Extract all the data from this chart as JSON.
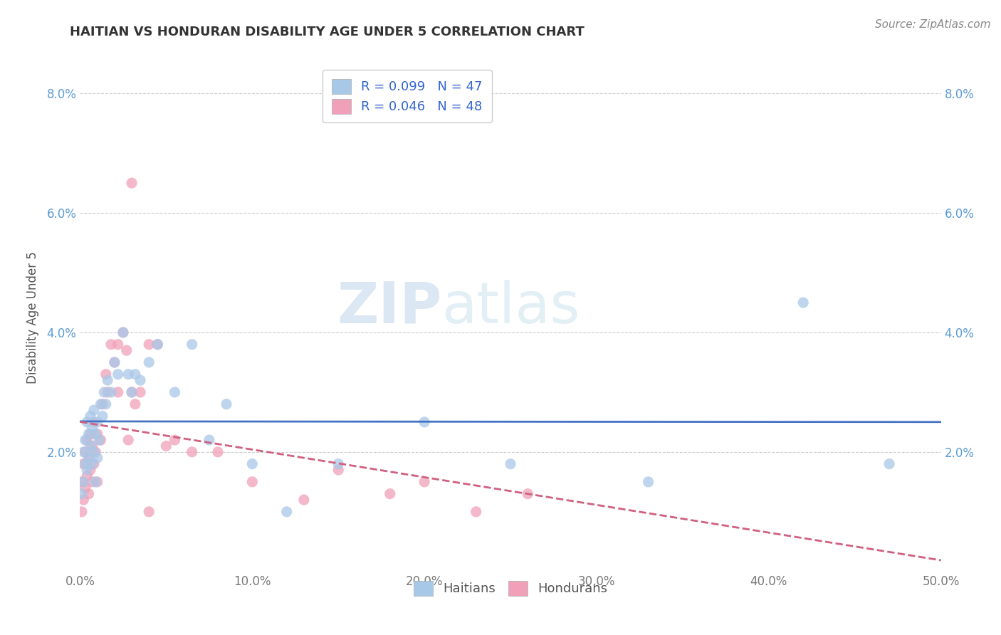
{
  "title": "HAITIAN VS HONDURAN DISABILITY AGE UNDER 5 CORRELATION CHART",
  "source": "Source: ZipAtlas.com",
  "ylabel": "Disability Age Under 5",
  "xlim": [
    0.0,
    0.5
  ],
  "ylim": [
    0.0,
    0.085
  ],
  "xticks": [
    0.0,
    0.1,
    0.2,
    0.3,
    0.4,
    0.5
  ],
  "yticks": [
    0.0,
    0.02,
    0.04,
    0.06,
    0.08
  ],
  "ytick_labels": [
    "",
    "2.0%",
    "4.0%",
    "6.0%",
    "8.0%"
  ],
  "xtick_labels": [
    "0.0%",
    "10.0%",
    "20.0%",
    "30.0%",
    "40.0%",
    "50.0%"
  ],
  "legend_r1": "R = 0.099",
  "legend_n1": "N = 47",
  "legend_r2": "R = 0.046",
  "legend_n2": "N = 48",
  "color_haitian": "#a8c8e8",
  "color_honduran": "#f0a0b8",
  "color_line_haitian": "#4472c4",
  "color_line_honduran": "#d06080",
  "background_color": "#ffffff",
  "watermark_zip": "ZIP",
  "watermark_atlas": "atlas",
  "haitian_x": [
    0.001,
    0.002,
    0.002,
    0.003,
    0.003,
    0.004,
    0.004,
    0.005,
    0.005,
    0.006,
    0.006,
    0.007,
    0.007,
    0.008,
    0.008,
    0.009,
    0.009,
    0.01,
    0.01,
    0.011,
    0.012,
    0.013,
    0.014,
    0.015,
    0.016,
    0.018,
    0.02,
    0.022,
    0.025,
    0.028,
    0.03,
    0.032,
    0.035,
    0.04,
    0.045,
    0.055,
    0.065,
    0.075,
    0.085,
    0.1,
    0.12,
    0.15,
    0.2,
    0.25,
    0.33,
    0.42,
    0.47
  ],
  "haitian_y": [
    0.013,
    0.02,
    0.015,
    0.018,
    0.022,
    0.017,
    0.025,
    0.019,
    0.023,
    0.021,
    0.026,
    0.018,
    0.024,
    0.02,
    0.027,
    0.015,
    0.023,
    0.019,
    0.025,
    0.022,
    0.028,
    0.026,
    0.03,
    0.028,
    0.032,
    0.03,
    0.035,
    0.033,
    0.04,
    0.033,
    0.03,
    0.033,
    0.032,
    0.035,
    0.038,
    0.03,
    0.038,
    0.022,
    0.028,
    0.018,
    0.01,
    0.018,
    0.025,
    0.018,
    0.015,
    0.045,
    0.018
  ],
  "honduran_x": [
    0.001,
    0.001,
    0.002,
    0.002,
    0.003,
    0.003,
    0.004,
    0.004,
    0.005,
    0.005,
    0.006,
    0.006,
    0.007,
    0.007,
    0.008,
    0.008,
    0.009,
    0.01,
    0.01,
    0.012,
    0.013,
    0.015,
    0.016,
    0.018,
    0.02,
    0.022,
    0.025,
    0.027,
    0.03,
    0.032,
    0.035,
    0.04,
    0.045,
    0.05,
    0.055,
    0.065,
    0.08,
    0.1,
    0.13,
    0.15,
    0.18,
    0.2,
    0.23,
    0.26,
    0.03,
    0.028,
    0.022,
    0.04
  ],
  "honduran_y": [
    0.01,
    0.015,
    0.012,
    0.018,
    0.014,
    0.02,
    0.016,
    0.022,
    0.013,
    0.019,
    0.017,
    0.023,
    0.015,
    0.021,
    0.018,
    0.025,
    0.02,
    0.015,
    0.023,
    0.022,
    0.028,
    0.033,
    0.03,
    0.038,
    0.035,
    0.038,
    0.04,
    0.037,
    0.03,
    0.028,
    0.03,
    0.038,
    0.038,
    0.021,
    0.022,
    0.02,
    0.02,
    0.015,
    0.012,
    0.017,
    0.013,
    0.015,
    0.01,
    0.013,
    0.065,
    0.022,
    0.03,
    0.01
  ]
}
